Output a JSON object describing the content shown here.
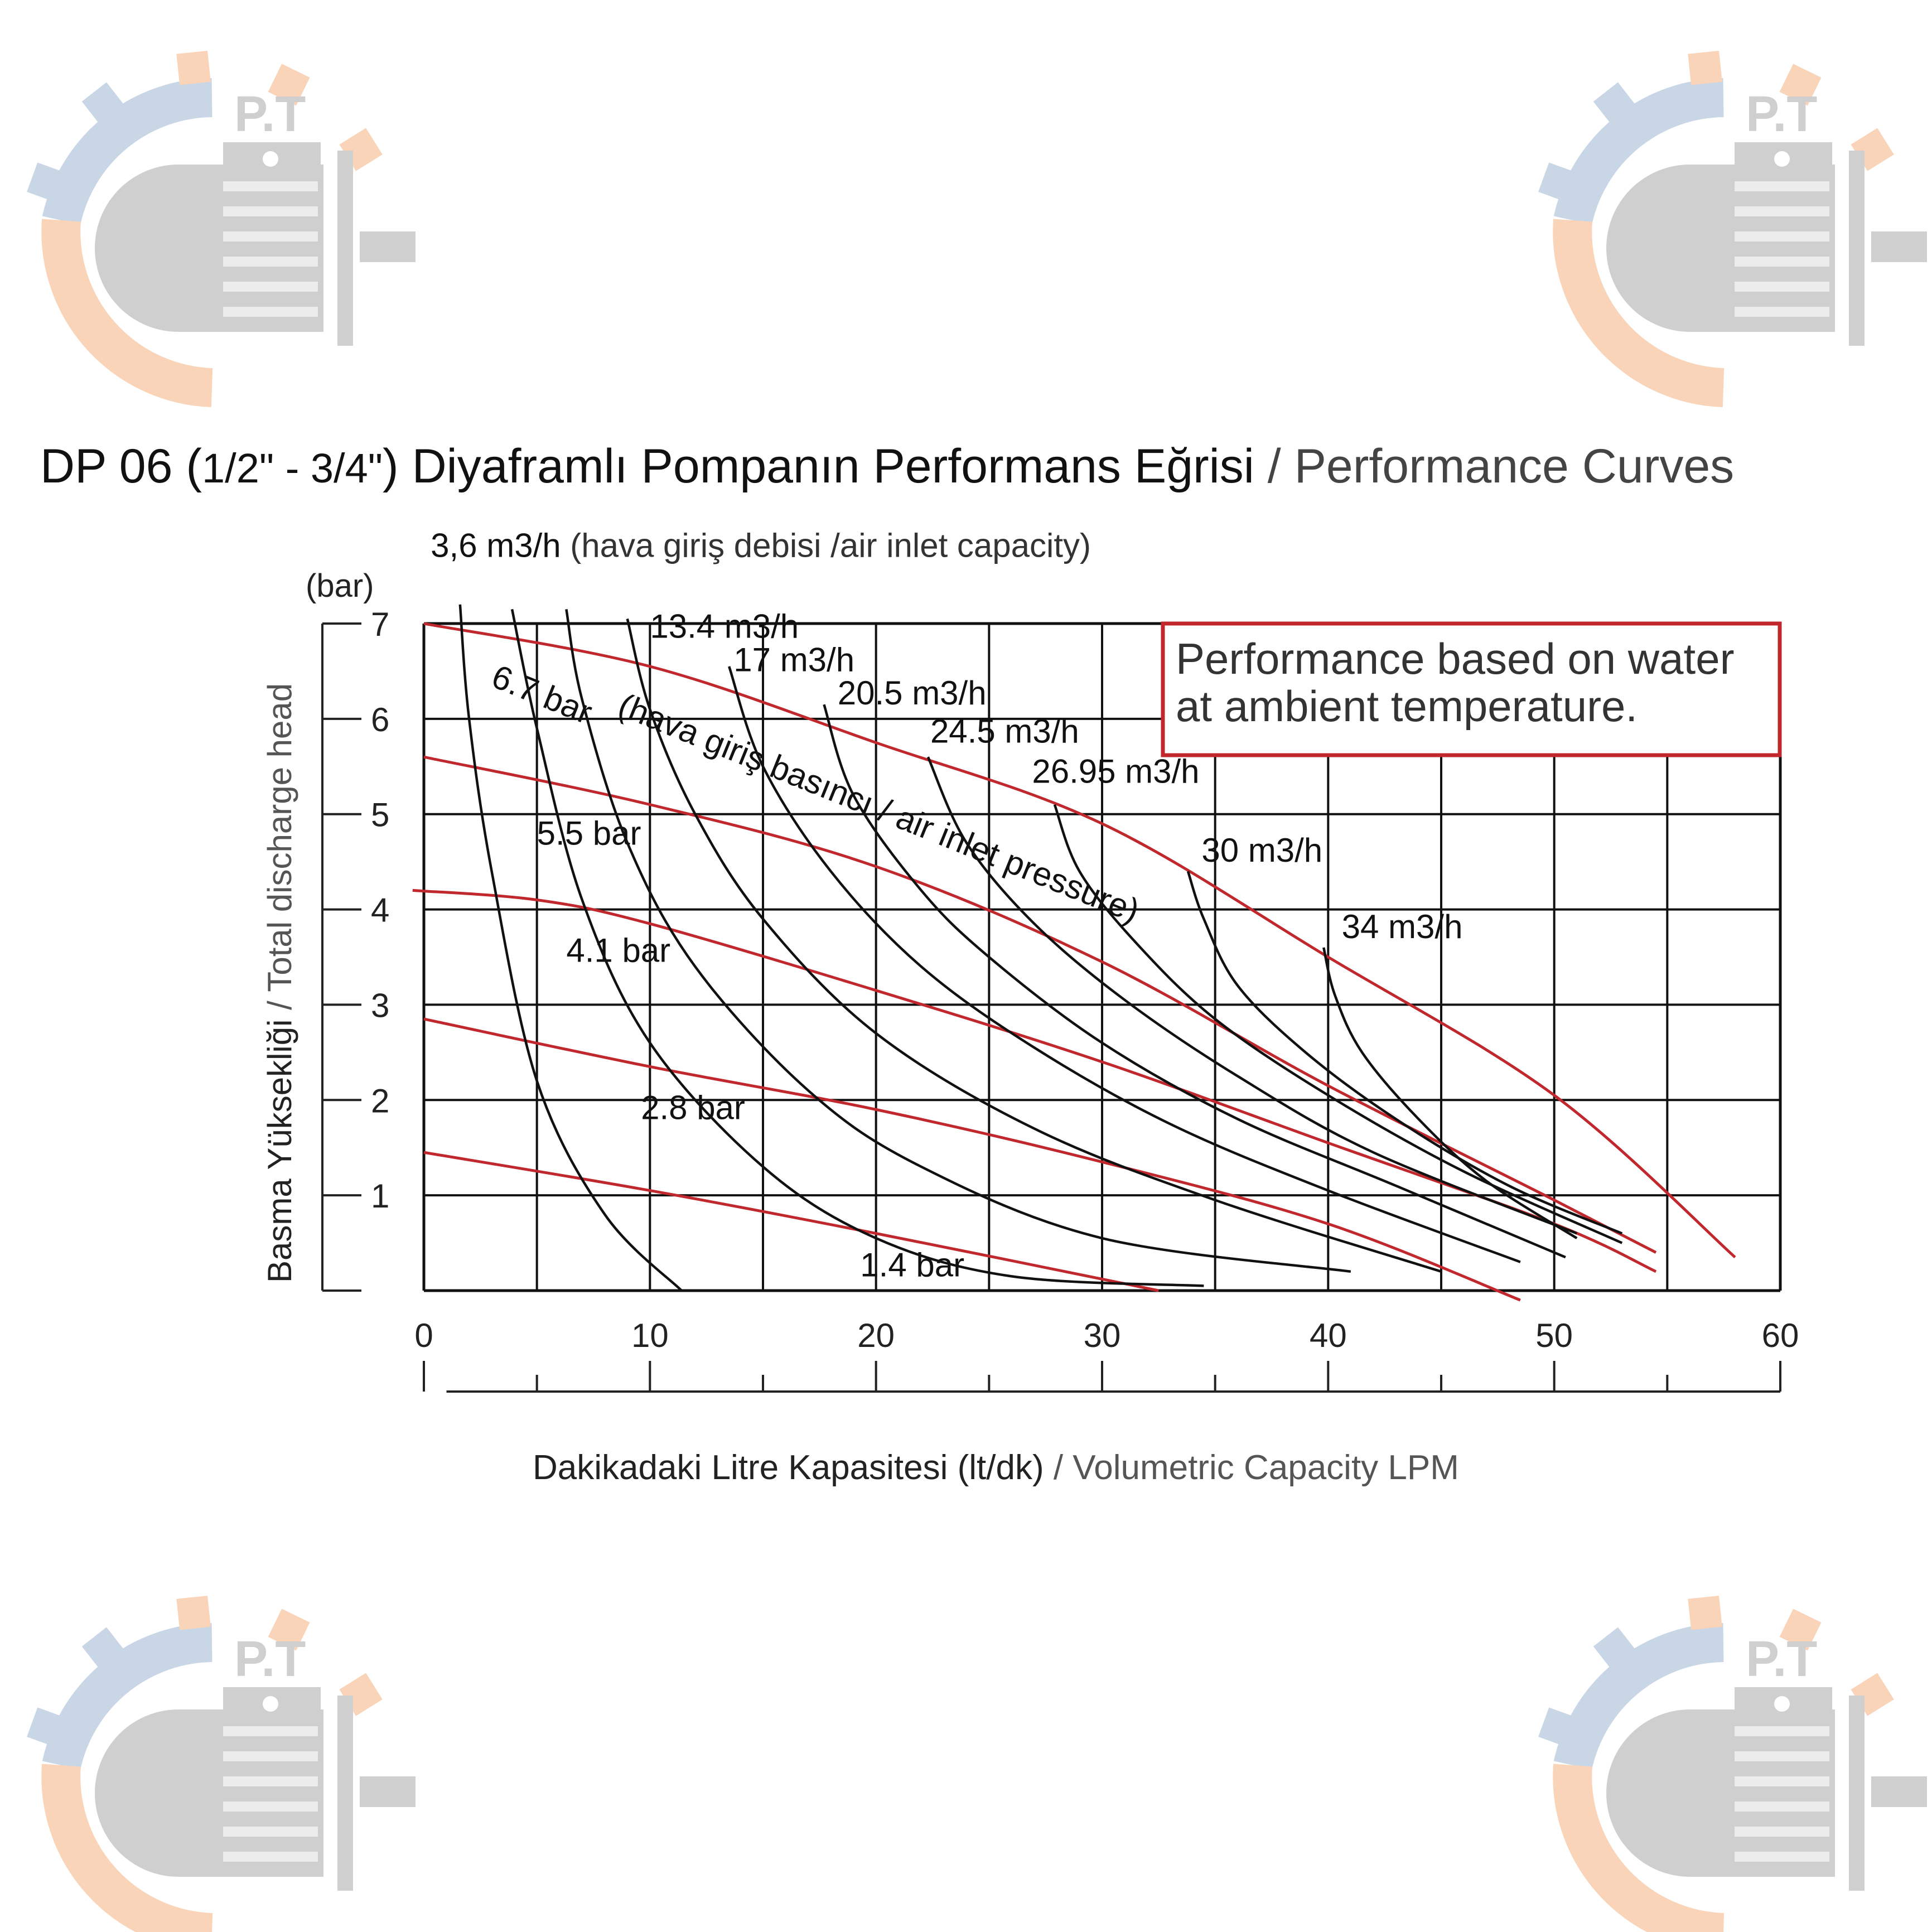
{
  "watermark": {
    "text": "P.T",
    "icon": "motor-gear-logo-icon",
    "colors": {
      "gear_blue": "#c9d6e6",
      "gear_orange": "#f9d4b8",
      "motor_gray": "#cfcfcf"
    }
  },
  "header": {
    "title_tr_a": "DP 06 (",
    "title_size": "1/2\" - 3/4\"",
    "title_tr_b": ") Diyaframlı Pompanın Performans Eğrisi",
    "title_sep": " / ",
    "title_en": "Performance Curves"
  },
  "note": {
    "line1": "Performance based on water",
    "line2": "at ambient temperature.",
    "border_color": "#c0282d"
  },
  "chart_data": {
    "type": "line",
    "title": "DP 06 (1/2\" - 3/4\") Diyaframlı Pompanın Performans Eğrisi / Performance Curves",
    "xlabel_tr": "Dakikadaki Litre Kapasitesi (lt/dk)",
    "xlabel_sep": " / ",
    "xlabel_en": "Volumetric Capacity LPM",
    "ylabel_tr": "Basma Yüksekliği",
    "ylabel_sep": " / ",
    "ylabel_en": "Total discharge head",
    "yunit": "(bar)",
    "xlim": [
      0,
      60
    ],
    "ylim": [
      0,
      7
    ],
    "xticks": [
      0,
      10,
      20,
      30,
      40,
      50,
      60
    ],
    "yticks": [
      1,
      2,
      3,
      4,
      5,
      6,
      7
    ],
    "grid": true,
    "colors": {
      "pressure": "#c0282d",
      "capacity": "#111111",
      "grid": "#111111"
    },
    "pressure_label_note": "(hava giriş basıncı / air inlet pressure)",
    "capacity_label_note": "(hava giriş debisi /air inlet capacity)",
    "pressure_series": [
      {
        "name": "6.7 bar",
        "x": [
          0,
          10,
          20,
          30,
          40,
          50,
          58
        ],
        "y": [
          7.0,
          6.55,
          5.75,
          4.9,
          3.5,
          2.05,
          0.35
        ]
      },
      {
        "name": "5.5 bar",
        "x": [
          0,
          10,
          20,
          30,
          40,
          50,
          54.5
        ],
        "y": [
          5.6,
          5.1,
          4.45,
          3.45,
          2.15,
          0.95,
          0.4
        ]
      },
      {
        "name": "4.1 bar",
        "x": [
          -0.5,
          5,
          10,
          20,
          30,
          40,
          50,
          54.5
        ],
        "y": [
          4.2,
          4.1,
          3.85,
          3.15,
          2.4,
          1.55,
          0.7,
          0.2
        ]
      },
      {
        "name": "2.8 bar",
        "x": [
          0,
          10,
          20,
          30,
          40,
          48.5
        ],
        "y": [
          2.85,
          2.35,
          1.9,
          1.35,
          0.7,
          -0.1
        ]
      },
      {
        "name": "1.4 bar",
        "x": [
          0,
          10,
          20,
          32.5
        ],
        "y": [
          1.45,
          1.05,
          0.6,
          0.0
        ]
      }
    ],
    "capacity_series": [
      {
        "name": "3,6 m3/h",
        "x": [
          1.6,
          2.0,
          3.0,
          5.0,
          8.0,
          11.4
        ],
        "y": [
          7.2,
          6.0,
          4.4,
          2.2,
          0.8,
          0.0
        ]
      },
      {
        "name": "13.4 m3/h",
        "x": [
          3.9,
          5.0,
          7.0,
          10.0,
          15.0,
          20.0,
          26.0,
          34.5
        ],
        "y": [
          7.15,
          5.9,
          4.1,
          2.6,
          1.3,
          0.55,
          0.15,
          0.05
        ]
      },
      {
        "name": "17 m3/h",
        "x": [
          6.3,
          7.0,
          9.0,
          12.0,
          17.0,
          22.0,
          30.0,
          41.0
        ],
        "y": [
          7.15,
          6.2,
          4.7,
          3.4,
          2.1,
          1.3,
          0.55,
          0.2
        ]
      },
      {
        "name": "20.5 m3/h",
        "x": [
          9.0,
          10.0,
          12.0,
          15.0,
          20.0,
          27.0,
          35.0,
          45.0
        ],
        "y": [
          7.05,
          6.1,
          5.0,
          3.9,
          2.7,
          1.7,
          0.95,
          0.2
        ]
      },
      {
        "name": "24.5 m3/h",
        "x": [
          13.5,
          15.0,
          18.0,
          22.0,
          27.0,
          33.0,
          40.0,
          48.5
        ],
        "y": [
          6.55,
          5.5,
          4.4,
          3.4,
          2.55,
          1.75,
          1.05,
          0.3
        ]
      },
      {
        "name": "26.95 m3/h",
        "x": [
          17.7,
          19.0,
          22.0,
          25.0,
          30.0,
          36.0,
          43.0,
          50.5
        ],
        "y": [
          6.15,
          5.2,
          4.2,
          3.5,
          2.6,
          1.8,
          1.1,
          0.35
        ]
      },
      {
        "name": "30 m3/h",
        "x": [
          22.3,
          24.0,
          27.0,
          31.0,
          36.0,
          42.0,
          51.0
        ],
        "y": [
          5.6,
          4.7,
          3.85,
          3.05,
          2.25,
          1.45,
          0.6
        ]
      },
      {
        "name": "34 m3/h",
        "x": [
          27.9,
          29.0,
          31.5,
          35.0,
          40.0,
          46.0,
          53.0
        ],
        "y": [
          5.1,
          4.4,
          3.65,
          2.85,
          2.05,
          1.25,
          0.5
        ]
      },
      {
        "name": "34 m3/h (b)",
        "x": [
          33.8,
          34.5,
          36.0,
          39.0,
          43.0,
          48.0,
          53.0
        ],
        "y": [
          4.4,
          3.9,
          3.2,
          2.5,
          1.8,
          1.1,
          0.6
        ]
      },
      {
        "name": "34 m3/h (c)",
        "x": [
          39.8,
          40.3,
          41.5,
          44.0,
          47.0,
          51.0
        ],
        "y": [
          3.6,
          3.1,
          2.5,
          1.8,
          1.15,
          0.55
        ]
      }
    ],
    "capacity_labels": [
      {
        "text": "3,6 m3/h",
        "suffix": " (hava giriş debisi /air inlet capacity)",
        "x": 0.3,
        "y": 7.7
      },
      {
        "text": "13.4 m3/h",
        "x": 10.0,
        "y": 6.85
      },
      {
        "text": "17 m3/h",
        "x": 13.7,
        "y": 6.5
      },
      {
        "text": "20.5 m3/h",
        "x": 18.3,
        "y": 6.15
      },
      {
        "text": "24.5 m3/h",
        "x": 22.4,
        "y": 5.75
      },
      {
        "text": "26.95 m3/h",
        "x": 26.9,
        "y": 5.33
      },
      {
        "text": "30 m3/h",
        "x": 34.4,
        "y": 4.5
      },
      {
        "text": "34 m3/h",
        "x": 40.6,
        "y": 3.7
      }
    ],
    "pressure_labels": [
      {
        "text": "6.7 bar",
        "x": 2.9,
        "y": 6.35,
        "rotate": 22
      },
      {
        "text": "(hava giriş basıncı / air inlet pressure)",
        "x": 8.5,
        "y": 6.05,
        "rotate": 22
      },
      {
        "text": "5.5 bar",
        "x": 5.0,
        "y": 4.68
      },
      {
        "text": "4.1 bar",
        "x": 6.3,
        "y": 3.45
      },
      {
        "text": "2.8 bar",
        "x": 9.6,
        "y": 1.8
      },
      {
        "text": "1.4 bar",
        "x": 19.3,
        "y": 0.15
      }
    ]
  }
}
